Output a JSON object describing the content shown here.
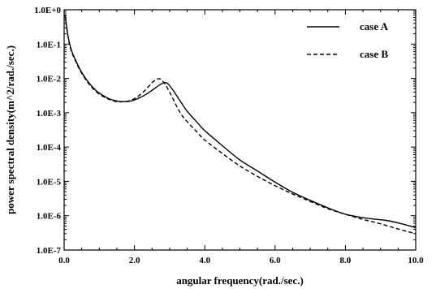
{
  "chart_data": {
    "type": "line",
    "title": "",
    "xlabel": "angular frequency(rad./sec.)",
    "ylabel": "power spectral density(m^2/rad./sec.)",
    "xlim": [
      0,
      10
    ],
    "ylim": [
      1e-07,
      1
    ],
    "yscale": "log",
    "grid": false,
    "legend_position": "top-right",
    "x_ticks": [
      0,
      2,
      4,
      6,
      8,
      10
    ],
    "x_tick_labels": [
      "0.0",
      "2.0",
      "4.0",
      "6.0",
      "8.0",
      "10.0"
    ],
    "y_ticks": [
      1e-07,
      1e-06,
      1e-05,
      0.0001,
      0.001,
      0.01,
      0.1,
      1
    ],
    "y_tick_labels": [
      "1.0E-7",
      "1.0E-6",
      "1.0E-5",
      "1.0E-4",
      "1.0E-3",
      "1.0E-2",
      "1.0E-1",
      "1.0E+0"
    ],
    "series": [
      {
        "name": "case A",
        "style": "solid",
        "x": [
          0.03,
          0.1,
          0.2,
          0.35,
          0.5,
          0.7,
          0.9,
          1.1,
          1.3,
          1.5,
          1.7,
          1.9,
          2.1,
          2.3,
          2.5,
          2.7,
          2.85,
          2.95,
          3.1,
          3.3,
          3.5,
          3.8,
          4.0,
          4.5,
          5.0,
          5.5,
          6.0,
          6.5,
          7.0,
          7.5,
          8.0,
          8.5,
          8.8,
          9.2,
          9.6,
          10.0
        ],
        "y": [
          0.7,
          0.2,
          0.07,
          0.03,
          0.015,
          0.0075,
          0.0045,
          0.0032,
          0.0025,
          0.0022,
          0.0021,
          0.0022,
          0.0026,
          0.0033,
          0.0045,
          0.0063,
          0.0075,
          0.007,
          0.0045,
          0.0022,
          0.0011,
          0.0005,
          0.0003,
          0.00011,
          4.2e-05,
          2e-05,
          9.5e-06,
          4.8e-06,
          2.8e-06,
          1.7e-06,
          1.1e-06,
          8.8e-07,
          8e-07,
          7.2e-07,
          5.8e-07,
          4.5e-07
        ]
      },
      {
        "name": "case B",
        "style": "dashed",
        "x": [
          0.03,
          0.1,
          0.2,
          0.35,
          0.5,
          0.7,
          0.9,
          1.1,
          1.3,
          1.5,
          1.7,
          1.9,
          2.1,
          2.3,
          2.5,
          2.6,
          2.7,
          2.8,
          2.95,
          3.1,
          3.3,
          3.5,
          3.8,
          4.0,
          4.5,
          5.0,
          5.5,
          6.0,
          6.5,
          7.0,
          7.5,
          8.0,
          8.5,
          9.0,
          9.5,
          10.0
        ],
        "y": [
          0.7,
          0.19,
          0.065,
          0.028,
          0.014,
          0.007,
          0.0042,
          0.003,
          0.0024,
          0.0021,
          0.0021,
          0.0023,
          0.003,
          0.0045,
          0.0075,
          0.009,
          0.0098,
          0.0085,
          0.005,
          0.0025,
          0.001,
          0.00055,
          0.00026,
          0.00016,
          6.5e-05,
          2.8e-05,
          1.4e-05,
          7.5e-06,
          4.3e-06,
          2.6e-06,
          1.6e-06,
          1.1e-06,
          7.8e-07,
          5.8e-07,
          4.1e-07,
          3e-07
        ]
      }
    ]
  }
}
